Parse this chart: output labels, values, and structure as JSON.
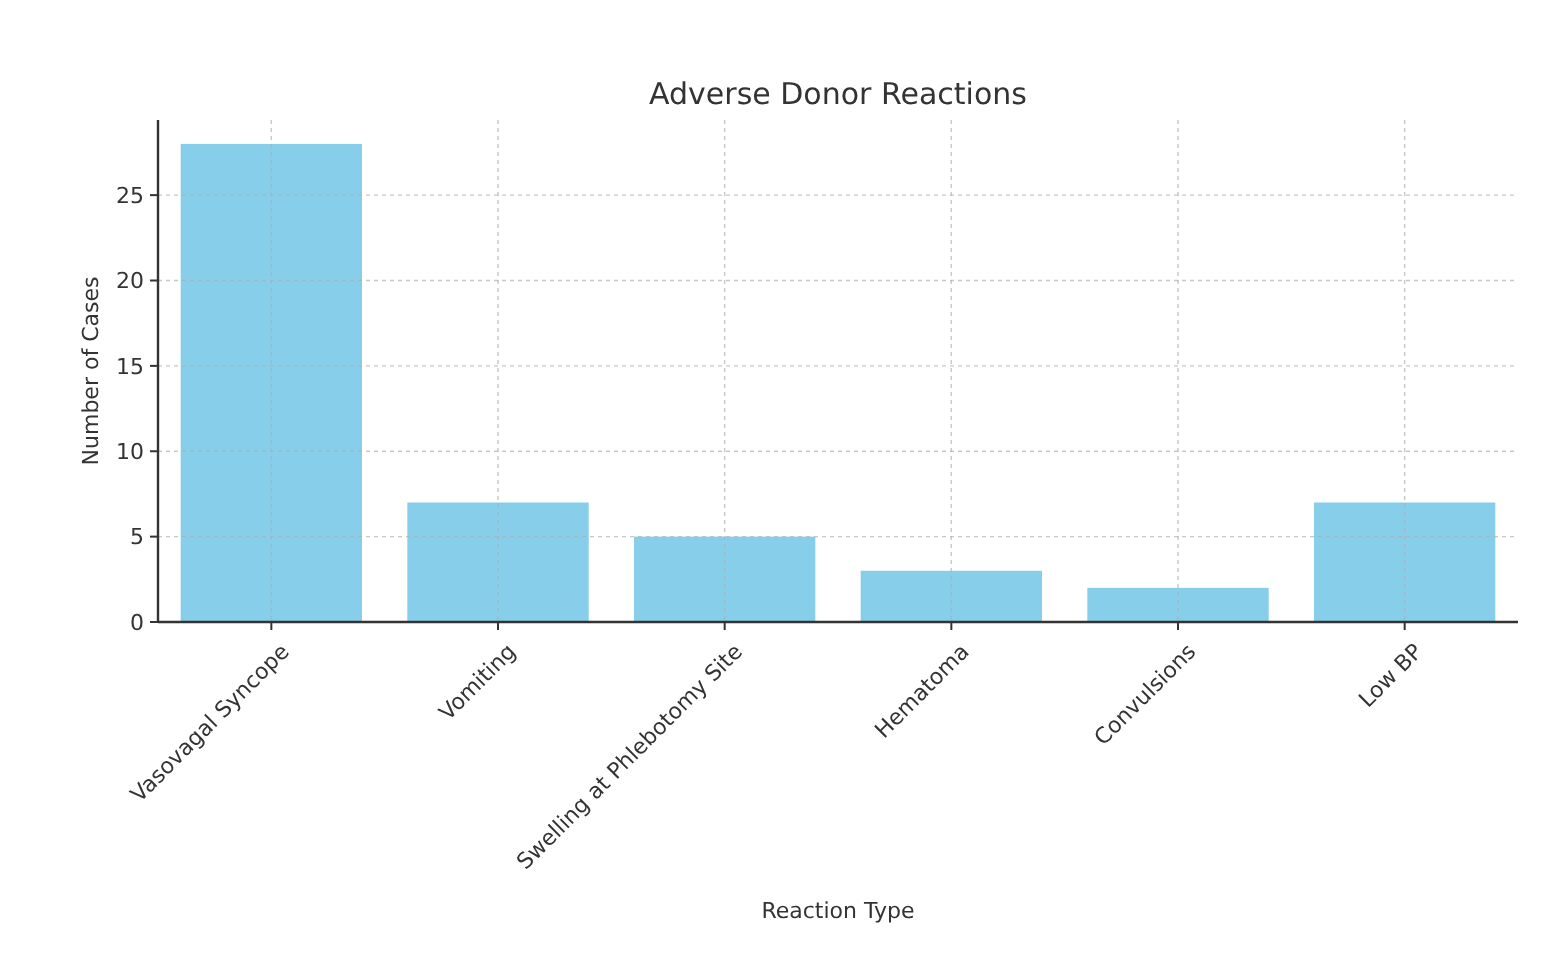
{
  "chart_data": {
    "type": "bar",
    "title": "Adverse Donor Reactions",
    "xlabel": "Reaction Type",
    "ylabel": "Number of Cases",
    "categories": [
      "Vasovagal Syncope",
      "Vomiting",
      "Swelling at Phlebotomy Site",
      "Hematoma",
      "Convulsions",
      "Low BP"
    ],
    "values": [
      28,
      7,
      5,
      3,
      2,
      7
    ],
    "color": "#87ceeb",
    "ylim": [
      0,
      29.4
    ],
    "yticks": [
      0,
      5,
      10,
      15,
      20,
      25
    ],
    "grid": true
  }
}
